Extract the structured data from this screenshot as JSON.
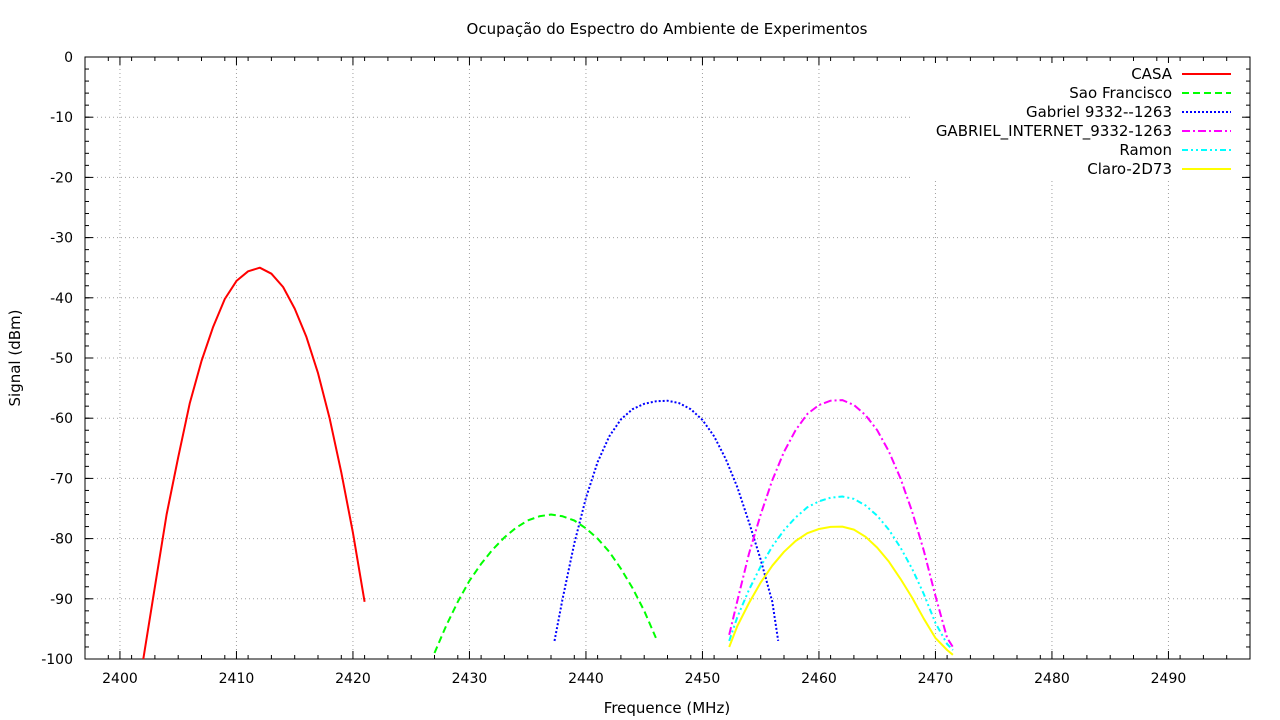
{
  "chart_data": {
    "type": "line",
    "title": "Ocupação do Espectro do Ambiente de Experimentos",
    "xlabel": "Frequence (MHz)",
    "ylabel": "Signal (dBm)",
    "xlim": [
      2397,
      2497
    ],
    "ylim": [
      -100,
      0
    ],
    "xticks": [
      2400,
      2410,
      2420,
      2430,
      2440,
      2450,
      2460,
      2470,
      2480,
      2490
    ],
    "yticks": [
      0,
      -10,
      -20,
      -30,
      -40,
      -50,
      -60,
      -70,
      -80,
      -90,
      -100
    ],
    "grid": true,
    "legend_position": "top-right",
    "series": [
      {
        "name": "CASA",
        "color": "#ff0000",
        "dash": "solid",
        "points": [
          [
            2402,
            -100
          ],
          [
            2403,
            -88
          ],
          [
            2404,
            -76
          ],
          [
            2405,
            -66.5
          ],
          [
            2406,
            -57.5
          ],
          [
            2407,
            -50.5
          ],
          [
            2408,
            -44.8
          ],
          [
            2409,
            -40.2
          ],
          [
            2410,
            -37.2
          ],
          [
            2411,
            -35.6
          ],
          [
            2412,
            -35
          ],
          [
            2413,
            -36
          ],
          [
            2414,
            -38.2
          ],
          [
            2415,
            -41.8
          ],
          [
            2416,
            -46.5
          ],
          [
            2417,
            -52.5
          ],
          [
            2418,
            -60
          ],
          [
            2419,
            -69
          ],
          [
            2420,
            -79
          ],
          [
            2421,
            -90.5
          ]
        ]
      },
      {
        "name": "Sao Francisco",
        "color": "#00ff00",
        "dash": "dashed",
        "points": [
          [
            2427,
            -99
          ],
          [
            2428,
            -94.5
          ],
          [
            2429,
            -90.5
          ],
          [
            2430,
            -87
          ],
          [
            2431,
            -84.2
          ],
          [
            2432,
            -81.8
          ],
          [
            2433,
            -79.8
          ],
          [
            2434,
            -78.2
          ],
          [
            2435,
            -77
          ],
          [
            2436,
            -76.3
          ],
          [
            2437,
            -76
          ],
          [
            2438,
            -76.3
          ],
          [
            2439,
            -77
          ],
          [
            2440,
            -78.3
          ],
          [
            2441,
            -80
          ],
          [
            2442,
            -82.2
          ],
          [
            2443,
            -85
          ],
          [
            2444,
            -88.2
          ],
          [
            2445,
            -92
          ],
          [
            2446,
            -96.5
          ]
        ]
      },
      {
        "name": "Gabriel 9332--1263",
        "color": "#0000ff",
        "dash": "dotted",
        "points": [
          [
            2437.3,
            -97
          ],
          [
            2438,
            -90
          ],
          [
            2439,
            -80.8
          ],
          [
            2440,
            -73.2
          ],
          [
            2441,
            -67.3
          ],
          [
            2442,
            -63
          ],
          [
            2443,
            -60.2
          ],
          [
            2444,
            -58.5
          ],
          [
            2445,
            -57.6
          ],
          [
            2446,
            -57.2
          ],
          [
            2447,
            -57.1
          ],
          [
            2448,
            -57.5
          ],
          [
            2449,
            -58.5
          ],
          [
            2450,
            -60.3
          ],
          [
            2451,
            -63
          ],
          [
            2452,
            -66.8
          ],
          [
            2453,
            -71.5
          ],
          [
            2454,
            -77.3
          ],
          [
            2455,
            -83.5
          ],
          [
            2456,
            -90.5
          ],
          [
            2456.5,
            -97
          ]
        ]
      },
      {
        "name": "GABRIEL_INTERNET_9332-1263",
        "color": "#ff00ff",
        "dash": "dashdot",
        "points": [
          [
            2452.3,
            -96
          ],
          [
            2453,
            -90.3
          ],
          [
            2454,
            -82.5
          ],
          [
            2455,
            -76
          ],
          [
            2456,
            -70.3
          ],
          [
            2457,
            -65.6
          ],
          [
            2458,
            -62
          ],
          [
            2459,
            -59.3
          ],
          [
            2460,
            -57.8
          ],
          [
            2461,
            -57.1
          ],
          [
            2462,
            -57
          ],
          [
            2463,
            -57.8
          ],
          [
            2464,
            -59.5
          ],
          [
            2465,
            -62
          ],
          [
            2466,
            -65.5
          ],
          [
            2467,
            -70
          ],
          [
            2468,
            -75.5
          ],
          [
            2469,
            -82
          ],
          [
            2470,
            -89.5
          ],
          [
            2471,
            -96.5
          ],
          [
            2471.5,
            -98
          ]
        ]
      },
      {
        "name": "Ramon",
        "color": "#00ffff",
        "dash": "dashdotdot",
        "points": [
          [
            2452.3,
            -97
          ],
          [
            2453,
            -93
          ],
          [
            2454,
            -88.5
          ],
          [
            2455,
            -84.6
          ],
          [
            2456,
            -81.3
          ],
          [
            2457,
            -78.6
          ],
          [
            2458,
            -76.5
          ],
          [
            2459,
            -74.8
          ],
          [
            2460,
            -73.8
          ],
          [
            2461,
            -73.2
          ],
          [
            2462,
            -73
          ],
          [
            2463,
            -73.4
          ],
          [
            2464,
            -74.5
          ],
          [
            2465,
            -76.2
          ],
          [
            2466,
            -78.5
          ],
          [
            2467,
            -81.5
          ],
          [
            2468,
            -85
          ],
          [
            2469,
            -89.2
          ],
          [
            2470,
            -94
          ],
          [
            2471,
            -97.5
          ],
          [
            2471.5,
            -98.5
          ]
        ]
      },
      {
        "name": "Claro-2D73",
        "color": "#ffff00",
        "dash": "solid",
        "points": [
          [
            2452.3,
            -98
          ],
          [
            2453,
            -94.5
          ],
          [
            2454,
            -90.7
          ],
          [
            2455,
            -87.3
          ],
          [
            2456,
            -84.5
          ],
          [
            2457,
            -82.2
          ],
          [
            2458,
            -80.4
          ],
          [
            2459,
            -79.1
          ],
          [
            2460,
            -78.4
          ],
          [
            2461,
            -78.05
          ],
          [
            2462,
            -78
          ],
          [
            2463,
            -78.5
          ],
          [
            2464,
            -79.7
          ],
          [
            2465,
            -81.5
          ],
          [
            2466,
            -83.8
          ],
          [
            2467,
            -86.7
          ],
          [
            2468,
            -89.8
          ],
          [
            2469,
            -93.3
          ],
          [
            2470,
            -96.5
          ],
          [
            2471,
            -98.5
          ],
          [
            2471.5,
            -99.3
          ]
        ]
      }
    ]
  }
}
